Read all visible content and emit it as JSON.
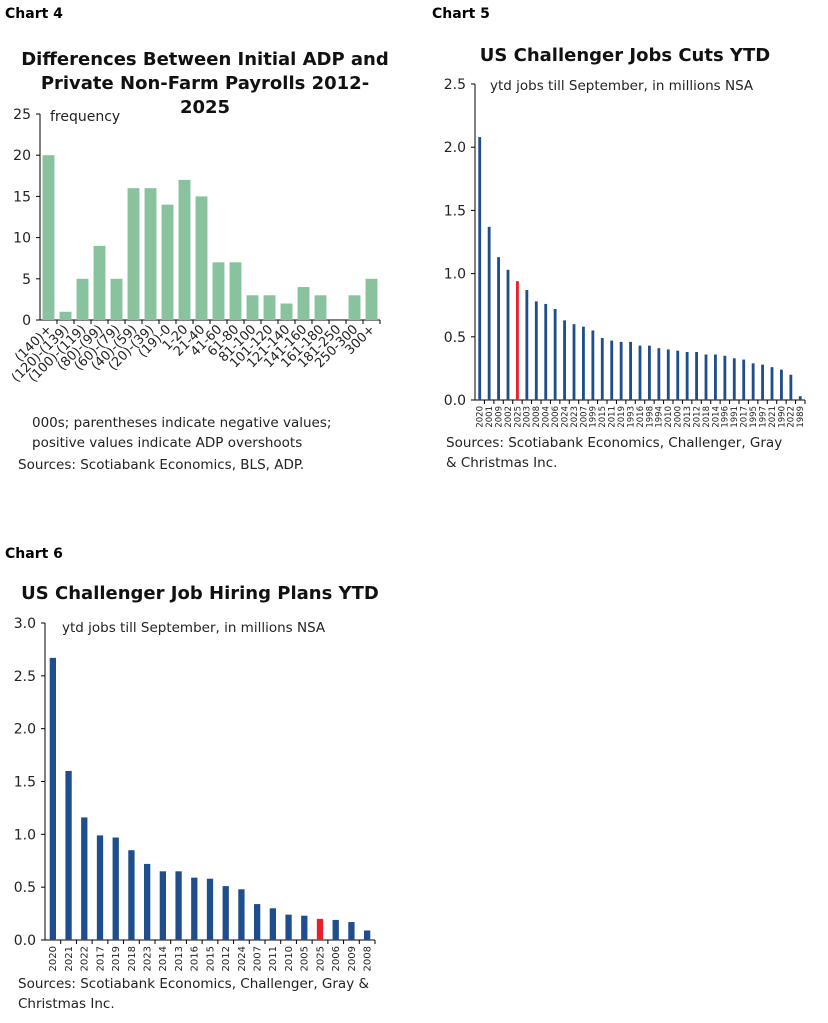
{
  "chart_data": [
    {
      "id": "c4",
      "label": "Chart 4",
      "type": "bar",
      "title": "Differences Between Initial ADP and Private Non-Farm Payrolls 2012-2025",
      "ylabel": "frequency",
      "ylim": [
        0,
        25
      ],
      "yticks": [
        0,
        5,
        10,
        15,
        20,
        25
      ],
      "color": "#88c39e",
      "categories": [
        "(140)+",
        "(120)-(139)",
        "(100)-(119)",
        "(80)-(99)",
        "(60)-(79)",
        "(40)-(59)",
        "(20)-(39)",
        "(19)-0",
        "1-20",
        "21-40",
        "41-60",
        "61-80",
        "81-100",
        "101-120",
        "121-140",
        "141-160",
        "161-180",
        "181-250",
        "250-300",
        "300+"
      ],
      "values": [
        20,
        1,
        5,
        9,
        5,
        16,
        16,
        14,
        17,
        15,
        7,
        7,
        3,
        3,
        2,
        4,
        3,
        0,
        3,
        5
      ],
      "notes": [
        "000s; parentheses indicate negative values;",
        "positive values indicate ADP overshoots",
        "Sources: Scotiabank Economics, BLS, ADP."
      ]
    },
    {
      "id": "c5",
      "label": "Chart 5",
      "type": "bar",
      "title": "US Challenger Jobs Cuts YTD",
      "ylabel": "ytd jobs till September, in millions NSA",
      "ylim": [
        0,
        2.5
      ],
      "yticks": [
        "0.0",
        "0.5",
        "1.0",
        "1.5",
        "2.0",
        "2.5"
      ],
      "color": "#1f4e8c",
      "highlight": "2025",
      "highlight_color": "#e8202a",
      "categories": [
        "2020",
        "2001",
        "2009",
        "2002",
        "2025",
        "2003",
        "2008",
        "2004",
        "2006",
        "2024",
        "2023",
        "2007",
        "1999",
        "2015",
        "2011",
        "2019",
        "1993",
        "2016",
        "1998",
        "1994",
        "2010",
        "2000",
        "2013",
        "2012",
        "2018",
        "2014",
        "1996",
        "1991",
        "2017",
        "1995",
        "1997",
        "2021",
        "1990",
        "2022",
        "1989"
      ],
      "values": [
        2.08,
        1.37,
        1.13,
        1.03,
        0.94,
        0.87,
        0.78,
        0.76,
        0.72,
        0.63,
        0.6,
        0.58,
        0.55,
        0.49,
        0.47,
        0.46,
        0.46,
        0.43,
        0.43,
        0.41,
        0.4,
        0.39,
        0.38,
        0.38,
        0.36,
        0.36,
        0.35,
        0.33,
        0.32,
        0.29,
        0.28,
        0.26,
        0.24,
        0.2,
        0.03
      ],
      "notes": [
        "Sources: Scotiabank Economics, Challenger, Gray",
        "& Christmas Inc."
      ]
    },
    {
      "id": "c6",
      "label": "Chart 6",
      "type": "bar",
      "title": "US Challenger Job Hiring Plans YTD",
      "ylabel": "ytd jobs till September, in millions NSA",
      "ylim": [
        0,
        3
      ],
      "yticks": [
        "0.0",
        "0.5",
        "1.0",
        "1.5",
        "2.0",
        "2.5",
        "3.0"
      ],
      "color": "#1f4e8c",
      "highlight": "2025",
      "highlight_color": "#e8202a",
      "categories": [
        "2020",
        "2021",
        "2022",
        "2017",
        "2019",
        "2018",
        "2023",
        "2014",
        "2013",
        "2016",
        "2015",
        "2012",
        "2024",
        "2007",
        "2011",
        "2010",
        "2005",
        "2025",
        "2006",
        "2009",
        "2008"
      ],
      "values": [
        2.67,
        1.6,
        1.16,
        0.99,
        0.97,
        0.85,
        0.72,
        0.65,
        0.65,
        0.59,
        0.58,
        0.51,
        0.48,
        0.34,
        0.3,
        0.24,
        0.23,
        0.2,
        0.19,
        0.17,
        0.09
      ],
      "notes": [
        "Sources: Scotiabank Economics, Challenger, Gray &",
        "Christmas Inc."
      ]
    }
  ]
}
